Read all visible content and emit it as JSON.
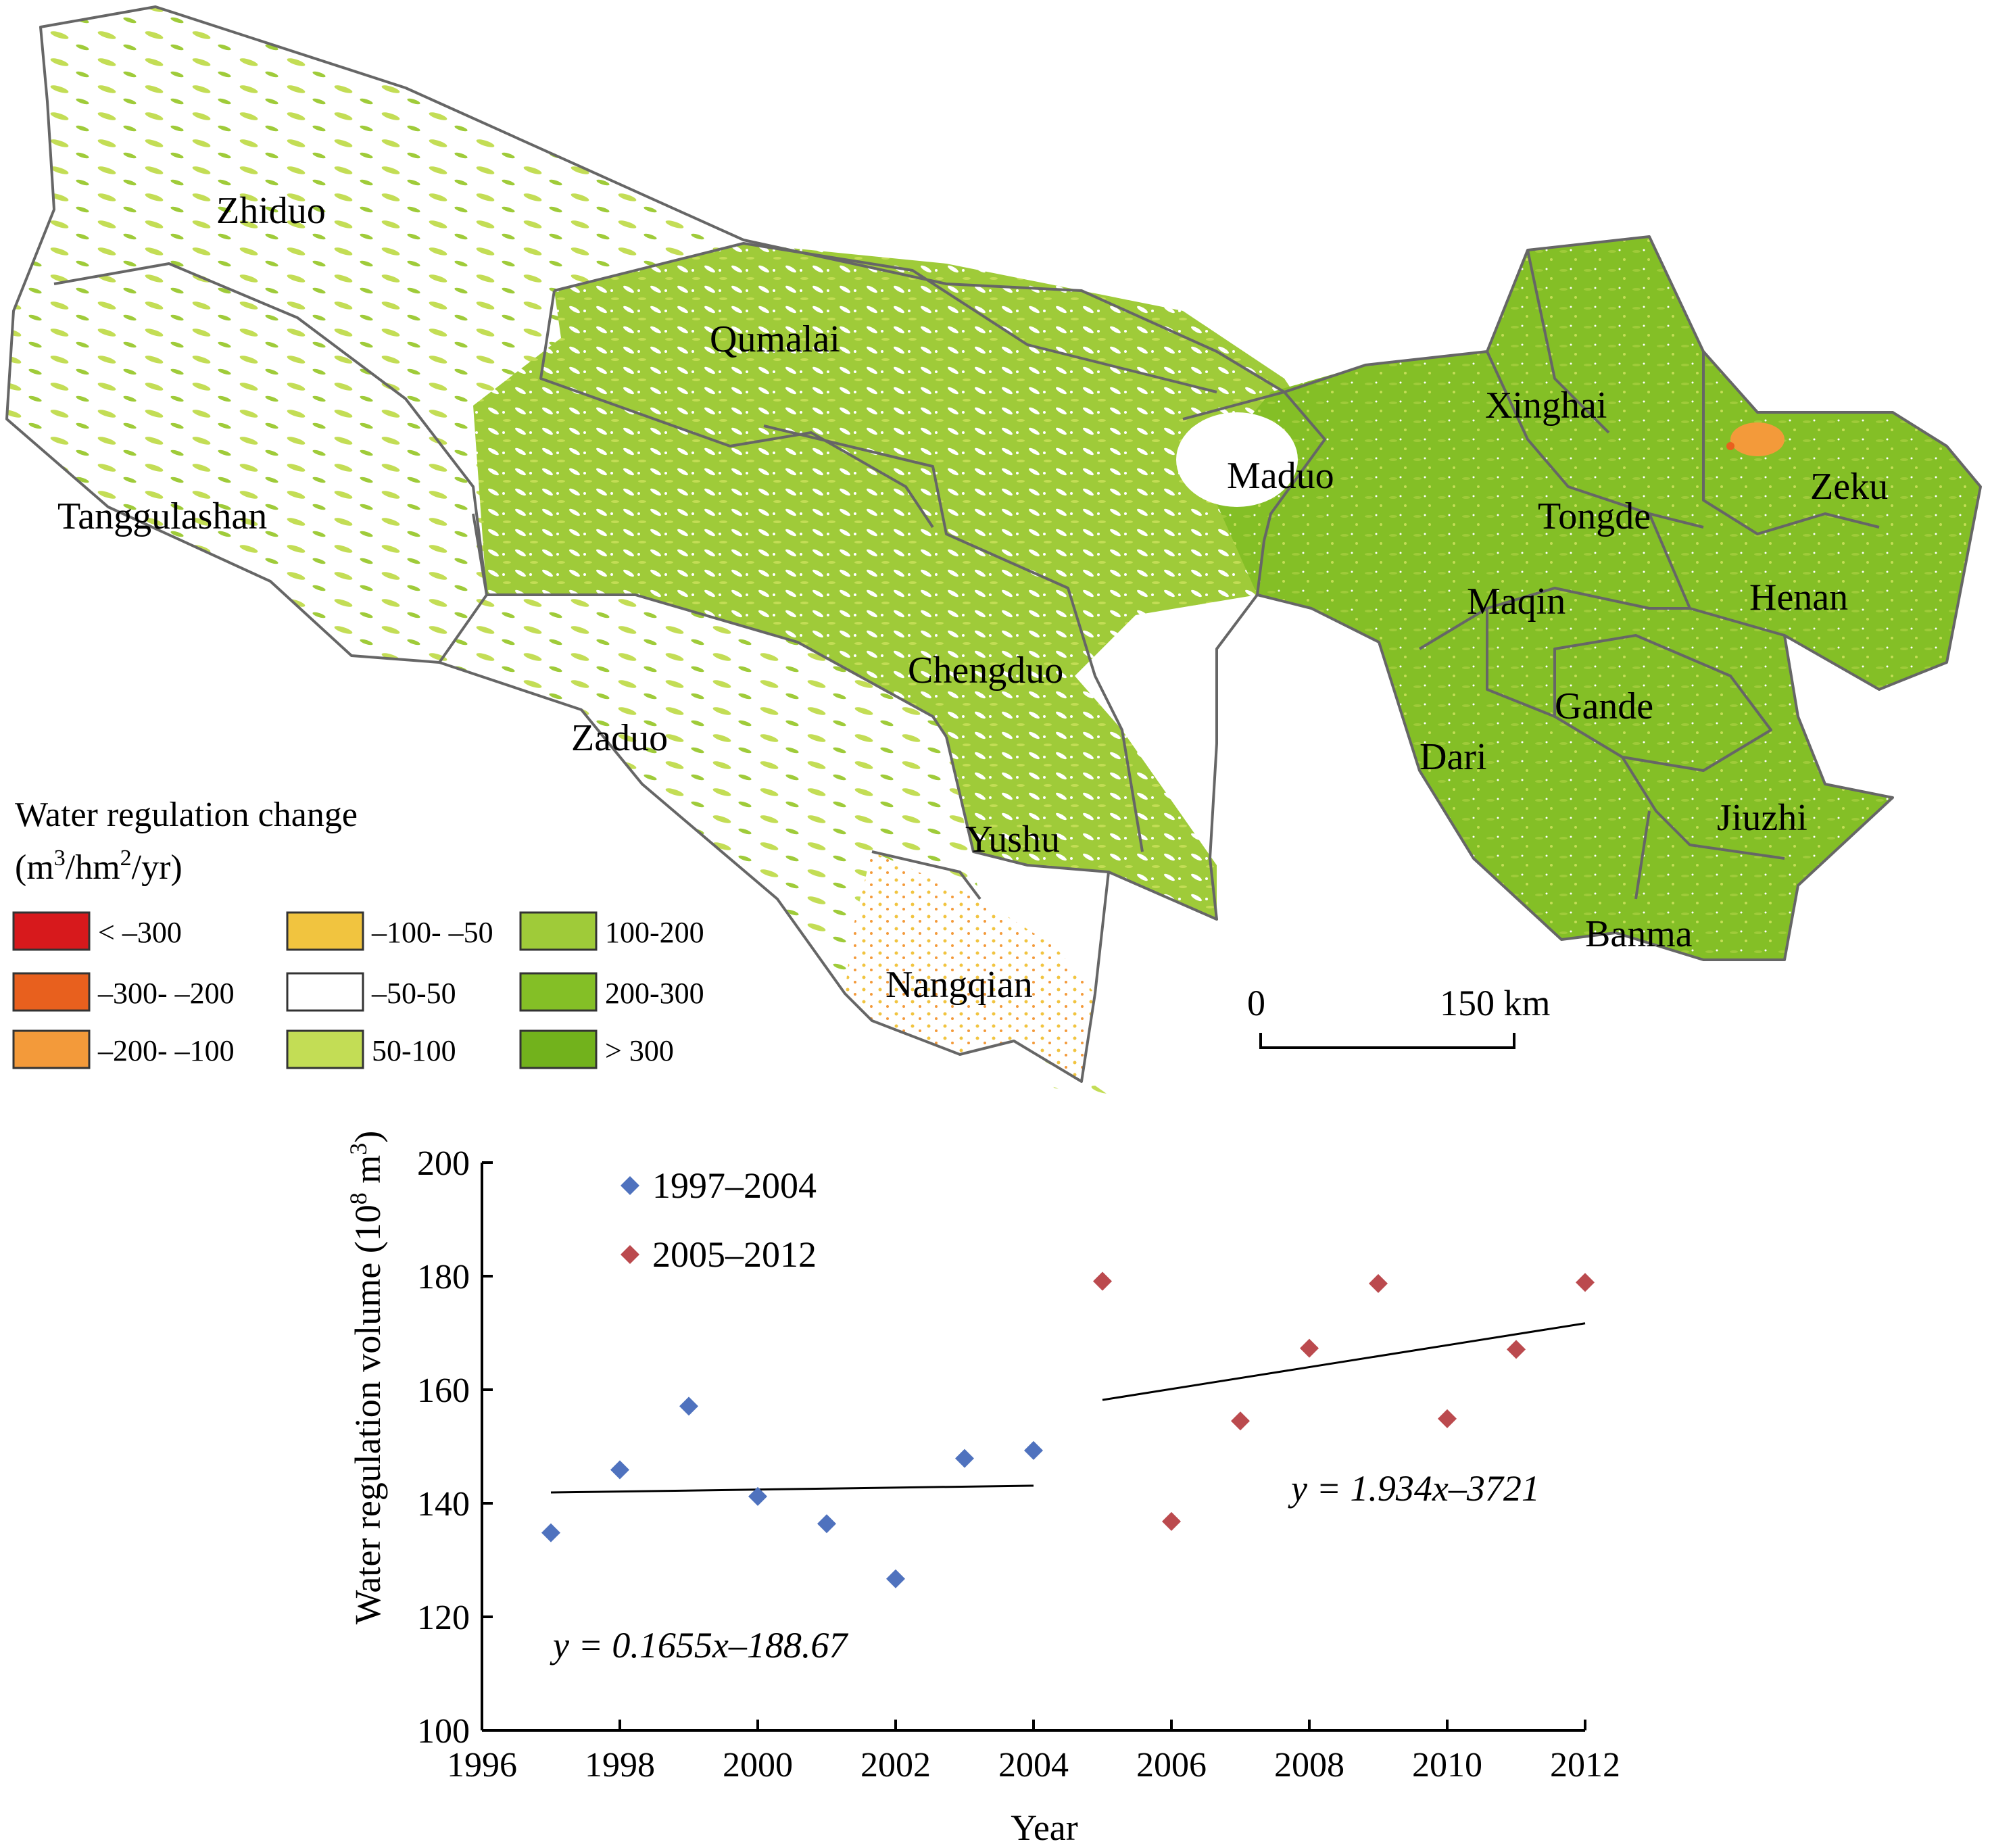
{
  "map": {
    "counties": [
      {
        "name": "Zhiduo"
      },
      {
        "name": "Qumalai"
      },
      {
        "name": "Tanggulashan"
      },
      {
        "name": "Zaduo"
      },
      {
        "name": "Chengduo"
      },
      {
        "name": "Yushu"
      },
      {
        "name": "Nangqian"
      },
      {
        "name": "Maduo"
      },
      {
        "name": "Xinghai"
      },
      {
        "name": "Tongde"
      },
      {
        "name": "Zeku"
      },
      {
        "name": "Henan"
      },
      {
        "name": "Maqin"
      },
      {
        "name": "Gande"
      },
      {
        "name": "Dari"
      },
      {
        "name": "Jiuzhi"
      },
      {
        "name": "Banma"
      }
    ],
    "legend": {
      "title": "Water regulation change",
      "unit_base": "(m",
      "unit_sup1": "3",
      "unit_mid": "/hm",
      "unit_sup2": "2",
      "unit_end": "/yr)",
      "classes": [
        {
          "label": "< –300",
          "color": "#d7191c"
        },
        {
          "label": "–300- –200",
          "color": "#e8601e"
        },
        {
          "label": "–200- –100",
          "color": "#f39a3a"
        },
        {
          "label": "–100- –50",
          "color": "#f1c43f"
        },
        {
          "label": "–50-50",
          "color": "#ffffff"
        },
        {
          "label": "50-100",
          "color": "#c3dd55"
        },
        {
          "label": "100-200",
          "color": "#9fcb39"
        },
        {
          "label": "200-300",
          "color": "#84bf26"
        },
        {
          "label": "> 300",
          "color": "#72b21c"
        }
      ]
    },
    "scale_bar": {
      "start_label": "0",
      "end_label": "150 km"
    }
  },
  "chart_data": {
    "type": "scatter",
    "xlabel": "Year",
    "ylabel_base": "Water regulation volume  (10",
    "ylabel_sup1": "8",
    "ylabel_mid": " m",
    "ylabel_sup2": "3",
    "ylabel_end": ")",
    "xlim": [
      1996,
      2012
    ],
    "ylim": [
      100,
      200
    ],
    "x_ticks": [
      "1996",
      "1998",
      "2000",
      "2002",
      "2004",
      "2006",
      "2008",
      "2010",
      "2012"
    ],
    "y_ticks": [
      "100",
      "120",
      "140",
      "160",
      "180",
      "200"
    ],
    "series": [
      {
        "name": "1997–2004",
        "color": "#4f72be",
        "x": [
          1997,
          1998,
          1999,
          2000,
          2001,
          2002,
          2003,
          2004
        ],
        "y": [
          134.8,
          145.9,
          157.1,
          141.2,
          136.4,
          126.7,
          147.9,
          149.3
        ],
        "trend": {
          "x": [
            1997,
            2004
          ],
          "y": [
            141.9,
            143.1
          ]
        },
        "equation": "y = 0.1655x–188.67"
      },
      {
        "name": "2005–2012",
        "color": "#bb4a4e",
        "x": [
          2005,
          2006,
          2007,
          2008,
          2009,
          2010,
          2011,
          2012
        ],
        "y": [
          179.1,
          136.8,
          154.5,
          167.3,
          178.7,
          154.9,
          167.1,
          178.9
        ],
        "trend": {
          "x": [
            2005,
            2012
          ],
          "y": [
            158.2,
            171.7
          ]
        },
        "equation": "y = 1.934x–3721"
      }
    ],
    "legend_position": "top-left"
  }
}
